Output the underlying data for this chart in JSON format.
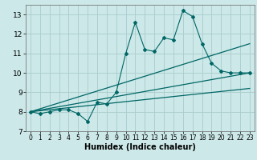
{
  "xlabel": "Humidex (Indice chaleur)",
  "xlim": [
    -0.5,
    23.5
  ],
  "ylim": [
    7,
    13.5
  ],
  "yticks": [
    7,
    8,
    9,
    10,
    11,
    12,
    13
  ],
  "xticks": [
    0,
    1,
    2,
    3,
    4,
    5,
    6,
    7,
    8,
    9,
    10,
    11,
    12,
    13,
    14,
    15,
    16,
    17,
    18,
    19,
    20,
    21,
    22,
    23
  ],
  "bg_color": "#cce8e8",
  "grid_color": "#aacccc",
  "line_color": "#006666",
  "main_x": [
    0,
    1,
    2,
    3,
    4,
    5,
    6,
    7,
    8,
    9,
    10,
    11,
    12,
    13,
    14,
    15,
    16,
    17,
    18,
    19,
    20,
    21,
    22,
    23
  ],
  "main_y": [
    8.0,
    7.9,
    8.0,
    8.1,
    8.1,
    7.9,
    7.5,
    8.5,
    8.4,
    9.0,
    11.0,
    12.6,
    11.2,
    11.1,
    11.8,
    11.7,
    13.2,
    12.9,
    11.5,
    10.5,
    10.1,
    10.0,
    10.0,
    10.0
  ],
  "trend1_x": [
    0,
    23
  ],
  "trend1_y": [
    8.0,
    10.0
  ],
  "trend2_x": [
    0,
    23
  ],
  "trend2_y": [
    8.0,
    11.5
  ],
  "trend3_x": [
    0,
    23
  ],
  "trend3_y": [
    8.0,
    9.2
  ]
}
